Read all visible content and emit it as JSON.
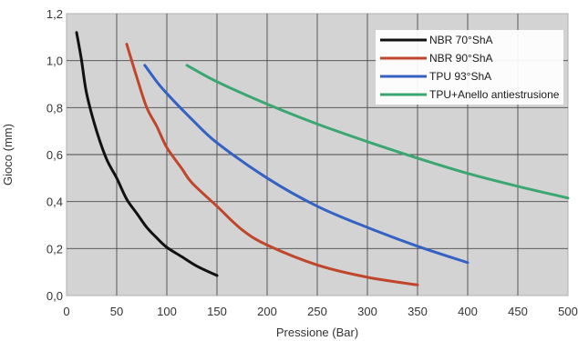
{
  "chart_data": {
    "type": "line",
    "xlabel": "Pressione (Bar)",
    "ylabel": "Gioco (mm)",
    "xlim": [
      0,
      500
    ],
    "ylim": [
      0,
      1.2
    ],
    "x_ticks": [
      "0",
      "50",
      "100",
      "150",
      "200",
      "250",
      "300",
      "350",
      "400",
      "450",
      "500"
    ],
    "y_ticks": [
      "0,0",
      "0,2",
      "0,4",
      "0,6",
      "0,8",
      "1,0",
      "1,2"
    ],
    "grid": true,
    "legend_position": "top-right",
    "series": [
      {
        "name": "NBR 70°ShA",
        "color": "#111111",
        "points": [
          [
            10,
            1.12
          ],
          [
            15,
            1.0
          ],
          [
            20,
            0.86
          ],
          [
            30,
            0.7
          ],
          [
            40,
            0.58
          ],
          [
            50,
            0.5
          ],
          [
            60,
            0.41
          ],
          [
            70,
            0.35
          ],
          [
            80,
            0.29
          ],
          [
            90,
            0.245
          ],
          [
            100,
            0.205
          ],
          [
            115,
            0.165
          ],
          [
            130,
            0.125
          ],
          [
            150,
            0.085
          ]
        ]
      },
      {
        "name": "NBR 90°ShA",
        "color": "#c0462b",
        "points": [
          [
            60,
            1.07
          ],
          [
            70,
            0.93
          ],
          [
            80,
            0.8
          ],
          [
            90,
            0.72
          ],
          [
            100,
            0.63
          ],
          [
            115,
            0.54
          ],
          [
            125,
            0.48
          ],
          [
            150,
            0.38
          ],
          [
            175,
            0.28
          ],
          [
            200,
            0.215
          ],
          [
            250,
            0.13
          ],
          [
            300,
            0.078
          ],
          [
            350,
            0.045
          ]
        ]
      },
      {
        "name": "TPU 93°ShA",
        "color": "#3461c4",
        "points": [
          [
            78,
            0.98
          ],
          [
            90,
            0.91
          ],
          [
            100,
            0.86
          ],
          [
            125,
            0.75
          ],
          [
            150,
            0.65
          ],
          [
            200,
            0.5
          ],
          [
            250,
            0.38
          ],
          [
            300,
            0.29
          ],
          [
            350,
            0.21
          ],
          [
            400,
            0.14
          ]
        ]
      },
      {
        "name": "TPU+Anello antiestrusione",
        "color": "#3aa771",
        "points": [
          [
            120,
            0.98
          ],
          [
            150,
            0.91
          ],
          [
            200,
            0.815
          ],
          [
            250,
            0.73
          ],
          [
            300,
            0.655
          ],
          [
            350,
            0.585
          ],
          [
            400,
            0.52
          ],
          [
            450,
            0.465
          ],
          [
            500,
            0.415
          ]
        ]
      }
    ]
  }
}
